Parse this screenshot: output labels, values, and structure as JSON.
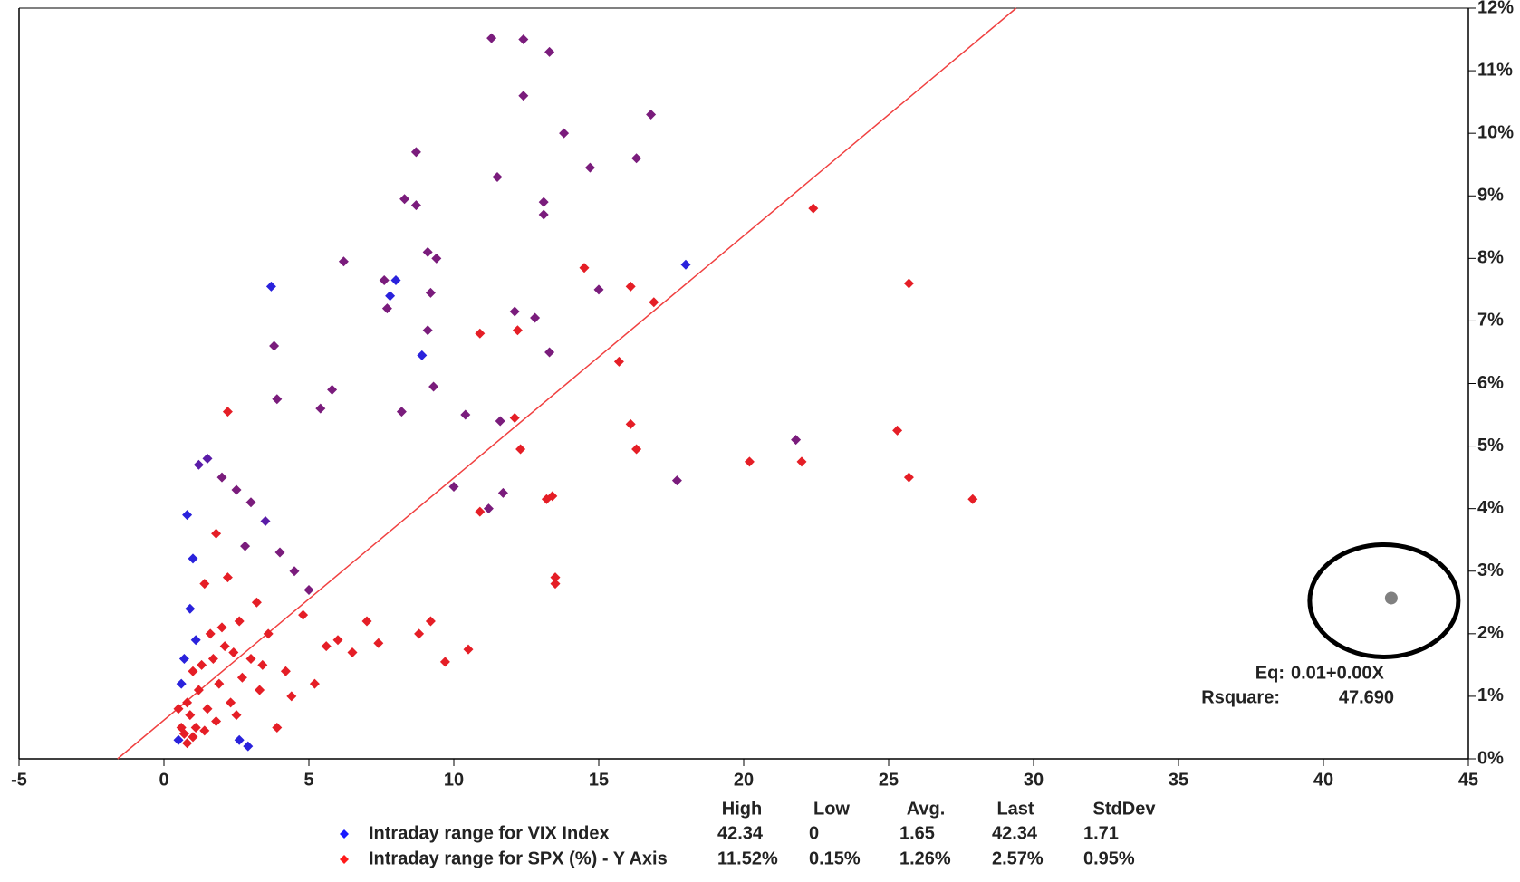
{
  "chart_data": {
    "type": "scatter",
    "xlim": [
      -5,
      45
    ],
    "xticks": [
      -5,
      0,
      5,
      10,
      15,
      20,
      25,
      30,
      35,
      40,
      45
    ],
    "ylim": [
      0,
      12
    ],
    "yticks": [
      {
        "value": 0,
        "label": "0%"
      },
      {
        "value": 1,
        "label": "1%"
      },
      {
        "value": 2,
        "label": "2%"
      },
      {
        "value": 3,
        "label": "3%"
      },
      {
        "value": 4,
        "label": "4%"
      },
      {
        "value": 5,
        "label": "5%"
      },
      {
        "value": 6,
        "label": "6%"
      },
      {
        "value": 7,
        "label": "7%"
      },
      {
        "value": 8,
        "label": "8%"
      },
      {
        "value": 9,
        "label": "9%"
      },
      {
        "value": 10,
        "label": "10%"
      },
      {
        "value": 11,
        "label": "11%"
      },
      {
        "value": 12,
        "label": "12%"
      }
    ],
    "points": {
      "x": [
        11.3,
        12.4,
        13.3,
        12.4,
        16.8,
        13.8,
        8.7,
        16.3,
        11.5,
        14.7,
        8.3,
        8.7,
        13.1,
        13.1,
        22.4,
        6.2,
        18.0,
        9.1,
        9.4,
        3.7,
        14.5,
        7.6,
        8.0,
        7.8,
        25.7,
        16.1,
        15.0,
        9.2,
        7.7,
        16.9,
        12.1,
        12.8,
        9.1,
        10.9,
        12.2,
        3.8,
        8.9,
        13.3,
        15.7,
        9.3,
        5.8,
        3.9,
        5.4,
        2.2,
        8.2,
        10.4,
        16.1,
        12.1,
        11.6,
        25.3,
        21.8,
        16.3,
        12.3,
        20.2,
        22.0,
        17.7,
        25.7,
        27.9,
        13.2,
        13.4,
        11.7,
        10.0,
        11.2,
        10.9,
        13.5,
        13.5,
        10.5,
        9.7,
        9.2,
        8.8,
        7.4,
        0.8,
        1.2,
        1.5,
        2.0,
        2.5,
        3.0,
        3.5,
        1.0,
        1.8,
        2.8,
        4.0,
        4.5,
        5.0,
        0.9,
        1.4,
        2.2,
        3.2,
        1.1,
        2.0,
        0.7,
        1.6,
        2.6,
        3.6,
        4.8,
        6.0,
        6.5,
        7.0,
        0.6,
        1.0,
        1.3,
        1.7,
        2.1,
        2.4,
        3.0,
        3.4,
        4.2,
        5.2,
        5.6,
        0.5,
        0.8,
        1.2,
        1.9,
        2.7,
        3.3,
        4.4,
        0.6,
        0.9,
        1.5,
        2.3,
        0.7,
        1.1,
        1.8,
        2.5,
        0.5,
        1.0,
        1.4,
        0.8,
        2.6,
        3.9,
        2.9
      ],
      "y": [
        11.52,
        11.5,
        11.3,
        10.6,
        10.3,
        10.0,
        9.7,
        9.6,
        9.3,
        9.45,
        8.95,
        8.85,
        8.9,
        8.7,
        8.8,
        7.95,
        7.9,
        8.1,
        8.0,
        7.55,
        7.85,
        7.65,
        7.65,
        7.4,
        7.6,
        7.55,
        7.5,
        7.45,
        7.2,
        7.3,
        7.15,
        7.05,
        6.85,
        6.8,
        6.85,
        6.6,
        6.45,
        6.5,
        6.35,
        5.95,
        5.9,
        5.75,
        5.6,
        5.55,
        5.55,
        5.5,
        5.35,
        5.45,
        5.4,
        5.25,
        5.1,
        4.95,
        4.95,
        4.75,
        4.75,
        4.45,
        4.5,
        4.15,
        4.15,
        4.2,
        4.25,
        4.35,
        4.0,
        3.95,
        2.9,
        2.8,
        1.75,
        1.55,
        2.2,
        2.0,
        1.85,
        3.9,
        4.7,
        4.8,
        4.5,
        4.3,
        4.1,
        3.8,
        3.2,
        3.6,
        3.4,
        3.3,
        3.0,
        2.7,
        2.4,
        2.8,
        2.9,
        2.5,
        1.9,
        2.1,
        1.6,
        2.0,
        2.2,
        2.0,
        2.3,
        1.9,
        1.7,
        2.2,
        1.2,
        1.4,
        1.5,
        1.6,
        1.8,
        1.7,
        1.6,
        1.5,
        1.4,
        1.2,
        1.8,
        0.8,
        0.9,
        1.1,
        1.2,
        1.3,
        1.1,
        1.0,
        0.5,
        0.7,
        0.8,
        0.9,
        0.4,
        0.5,
        0.6,
        0.7,
        0.3,
        0.35,
        0.45,
        0.25,
        0.3,
        0.5,
        0.2
      ],
      "colors": [
        "#7a1c7c",
        "#7a1c7c",
        "#7a1c7c",
        "#7a1c7c",
        "#7a1c7c",
        "#7a1c7c",
        "#7a1c7c",
        "#7a1c7c",
        "#7a1c7c",
        "#7a1c7c",
        "#7a1c7c",
        "#7a1c7c",
        "#7a1c7c",
        "#7a1c7c",
        "#e51e26",
        "#7a1c7c",
        "#2a22dc",
        "#7a1c7c",
        "#7a1c7c",
        "#2a22dc",
        "#e51e26",
        "#7a1c7c",
        "#2a22dc",
        "#2a22dc",
        "#e51e26",
        "#e51e26",
        "#7a1c7c",
        "#7a1c7c",
        "#7a1c7c",
        "#e51e26",
        "#7a1c7c",
        "#7a1c7c",
        "#7a1c7c",
        "#e51e26",
        "#e51e26",
        "#7a1c7c",
        "#2a22dc",
        "#7a1c7c",
        "#e51e26",
        "#7a1c7c",
        "#7a1c7c",
        "#7a1c7c",
        "#7a1c7c",
        "#e51e26",
        "#7a1c7c",
        "#7a1c7c",
        "#e51e26",
        "#e51e26",
        "#7a1c7c",
        "#e51e26",
        "#7a1c7c",
        "#e51e26",
        "#e51e26",
        "#e51e26",
        "#e51e26",
        "#7a1c7c",
        "#e51e26",
        "#e51e26",
        "#e51e26",
        "#e51e26",
        "#7a1c7c",
        "#7a1c7c",
        "#7a1c7c",
        "#e51e26",
        "#e51e26",
        "#e51e26",
        "#e51e26",
        "#e51e26",
        "#e51e26",
        "#e51e26",
        "#e51e26",
        "#2a22dc",
        "#5a1ca8",
        "#5a1ca8",
        "#7a1c7c",
        "#7a1c7c",
        "#7a1c7c",
        "#5a1ca8",
        "#2a22dc",
        "#e51e26",
        "#7a1c7c",
        "#7a1c7c",
        "#7a1c7c",
        "#7a1c7c",
        "#2a22dc",
        "#e51e26",
        "#e51e26",
        "#e51e26",
        "#2a22dc",
        "#e51e26",
        "#2a22dc",
        "#e51e26",
        "#e51e26",
        "#e51e26",
        "#e51e26",
        "#e51e26",
        "#e51e26",
        "#e51e26",
        "#2a22dc",
        "#e51e26",
        "#e51e26",
        "#e51e26",
        "#e51e26",
        "#e51e26",
        "#e51e26",
        "#e51e26",
        "#e51e26",
        "#e51e26",
        "#e51e26",
        "#e51e26",
        "#e51e26",
        "#e51e26",
        "#e51e26",
        "#e51e26",
        "#e51e26",
        "#e51e26",
        "#e51e26",
        "#e51e26",
        "#e51e26",
        "#e51e26",
        "#e51e26",
        "#e51e26",
        "#e51e26",
        "#e51e26",
        "#2a22dc",
        "#e51e26",
        "#e51e26",
        "#e51e26",
        "#2a22dc",
        "#e51e26",
        "#2a22dc"
      ]
    },
    "trendline": {
      "x": [
        -1.6,
        29.4
      ],
      "y": [
        0,
        12
      ],
      "color": "#f04040"
    },
    "highlight": {
      "x": 42.34,
      "y": 2.57,
      "color": "#808080"
    },
    "annotations": {
      "eq_label": "Eq:",
      "eq": "0.01+0.00X",
      "rsq_label": "Rsquare:",
      "rsq": "47.690"
    },
    "stats": {
      "headers": [
        "High",
        "Low",
        "Avg.",
        "Last",
        "StdDev"
      ],
      "rows": [
        {
          "name": "Intraday range for VIX Index",
          "color": "#1a1aff",
          "values": [
            "42.34",
            "0",
            "1.65",
            "42.34",
            "1.71"
          ]
        },
        {
          "name": "Intraday range for SPX (%) - Y Axis",
          "color": "#ff1a1a",
          "values": [
            "11.52%",
            "0.15%",
            "1.26%",
            "2.57%",
            "0.95%"
          ]
        }
      ]
    }
  }
}
